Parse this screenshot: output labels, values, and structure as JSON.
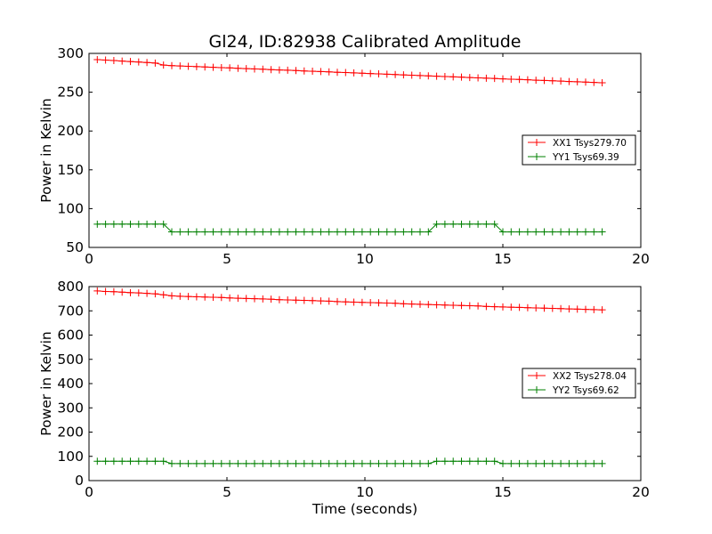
{
  "figure": {
    "title": "Gl24, ID:82938 Calibrated Amplitude"
  },
  "chart_data": [
    {
      "type": "line",
      "title": "Gl24, ID:82938 Calibrated Amplitude",
      "xlabel": "",
      "ylabel": "Power in Kelvin",
      "xlim": [
        0,
        20
      ],
      "ylim": [
        50,
        300
      ],
      "xticks": [
        0,
        5,
        10,
        15,
        20
      ],
      "yticks": [
        50,
        100,
        150,
        200,
        250,
        300
      ],
      "grid": false,
      "legend_position": "right",
      "series": [
        {
          "name": "XX1 Tsys279.70",
          "color": "#ff0000",
          "marker": "plus",
          "x": [
            0.3,
            0.6,
            0.9,
            1.2,
            1.5,
            1.8,
            2.1,
            2.4,
            2.7,
            3.0,
            3.3,
            3.6,
            3.9,
            4.2,
            4.5,
            4.8,
            5.1,
            5.4,
            5.7,
            6.0,
            6.3,
            6.6,
            6.9,
            7.2,
            7.5,
            7.8,
            8.1,
            8.4,
            8.7,
            9.0,
            9.3,
            9.6,
            9.9,
            10.2,
            10.5,
            10.8,
            11.1,
            11.4,
            11.7,
            12.0,
            12.3,
            12.6,
            12.9,
            13.2,
            13.5,
            13.8,
            14.1,
            14.4,
            14.7,
            15.0,
            15.3,
            15.6,
            15.9,
            16.2,
            16.5,
            16.8,
            17.1,
            17.4,
            17.7,
            18.0,
            18.3,
            18.6
          ],
          "y": [
            292.0,
            291.4,
            290.8,
            290.1,
            289.5,
            288.9,
            288.3,
            287.6,
            285.0,
            284.3,
            283.8,
            283.4,
            283.0,
            282.5,
            282.1,
            281.7,
            281.3,
            280.8,
            280.4,
            280.0,
            279.6,
            279.1,
            278.7,
            278.3,
            277.9,
            277.4,
            277.0,
            276.6,
            276.2,
            275.7,
            275.3,
            274.9,
            274.5,
            274.0,
            273.6,
            273.2,
            272.8,
            272.3,
            271.9,
            271.5,
            271.1,
            270.6,
            270.2,
            269.8,
            269.4,
            268.9,
            268.5,
            268.1,
            267.7,
            267.2,
            266.8,
            266.4,
            266.0,
            265.5,
            265.1,
            264.7,
            264.3,
            263.8,
            263.4,
            263.0,
            262.6,
            262.1
          ]
        },
        {
          "name": "YY1 Tsys69.39",
          "color": "#008000",
          "marker": "plus",
          "x": [
            0.3,
            0.6,
            0.9,
            1.2,
            1.5,
            1.8,
            2.1,
            2.4,
            2.7,
            3.0,
            3.3,
            3.6,
            3.9,
            4.2,
            4.5,
            4.8,
            5.1,
            5.4,
            5.7,
            6.0,
            6.3,
            6.6,
            6.9,
            7.2,
            7.5,
            7.8,
            8.1,
            8.4,
            8.7,
            9.0,
            9.3,
            9.6,
            9.9,
            10.2,
            10.5,
            10.8,
            11.1,
            11.4,
            11.7,
            12.0,
            12.3,
            12.6,
            12.9,
            13.2,
            13.5,
            13.8,
            14.1,
            14.4,
            14.7,
            15.0,
            15.3,
            15.6,
            15.9,
            16.2,
            16.5,
            16.8,
            17.1,
            17.4,
            17.7,
            18.0,
            18.3,
            18.6
          ],
          "y": [
            80,
            80,
            80,
            80,
            80,
            80,
            80,
            80,
            80,
            70,
            70,
            70,
            70,
            70,
            70,
            70,
            70,
            70,
            70,
            70,
            70,
            70,
            70,
            70,
            70,
            70,
            70,
            70,
            70,
            70,
            70,
            70,
            70,
            70,
            70,
            70,
            70,
            70,
            70,
            70,
            70,
            80,
            80,
            80,
            80,
            80,
            80,
            80,
            80,
            70,
            70,
            70,
            70,
            70,
            70,
            70,
            70,
            70,
            70,
            70,
            70,
            70
          ]
        }
      ]
    },
    {
      "type": "line",
      "title": "",
      "xlabel": "Time (seconds)",
      "ylabel": "Power in Kelvin",
      "xlim": [
        0,
        20
      ],
      "ylim": [
        0,
        800
      ],
      "xticks": [
        0,
        5,
        10,
        15,
        20
      ],
      "yticks": [
        0,
        100,
        200,
        300,
        400,
        500,
        600,
        700,
        800
      ],
      "grid": false,
      "legend_position": "right",
      "series": [
        {
          "name": "XX2 Tsys278.04",
          "color": "#ff0000",
          "marker": "plus",
          "x": [
            0.3,
            0.6,
            0.9,
            1.2,
            1.5,
            1.8,
            2.1,
            2.4,
            2.7,
            3.0,
            3.3,
            3.6,
            3.9,
            4.2,
            4.5,
            4.8,
            5.1,
            5.4,
            5.7,
            6.0,
            6.3,
            6.6,
            6.9,
            7.2,
            7.5,
            7.8,
            8.1,
            8.4,
            8.7,
            9.0,
            9.3,
            9.6,
            9.9,
            10.2,
            10.5,
            10.8,
            11.1,
            11.4,
            11.7,
            12.0,
            12.3,
            12.6,
            12.9,
            13.2,
            13.5,
            13.8,
            14.1,
            14.4,
            14.7,
            15.0,
            15.3,
            15.6,
            15.9,
            16.2,
            16.5,
            16.8,
            17.1,
            17.4,
            17.7,
            18.0,
            18.3,
            18.6
          ],
          "y": [
            782,
            780,
            779,
            777,
            775,
            774,
            772,
            770,
            766,
            762,
            760,
            759,
            758,
            757,
            756,
            755,
            753,
            752,
            751,
            750,
            749,
            748,
            746,
            745,
            744,
            743,
            742,
            741,
            740,
            738,
            737,
            736,
            735,
            734,
            733,
            732,
            731,
            729,
            728,
            727,
            726,
            725,
            724,
            723,
            722,
            721,
            720,
            718,
            717,
            716,
            715,
            714,
            713,
            712,
            711,
            710,
            709,
            708,
            707,
            706,
            705,
            704
          ]
        },
        {
          "name": "YY2 Tsys69.62",
          "color": "#008000",
          "marker": "plus",
          "x": [
            0.3,
            0.6,
            0.9,
            1.2,
            1.5,
            1.8,
            2.1,
            2.4,
            2.7,
            3.0,
            3.3,
            3.6,
            3.9,
            4.2,
            4.5,
            4.8,
            5.1,
            5.4,
            5.7,
            6.0,
            6.3,
            6.6,
            6.9,
            7.2,
            7.5,
            7.8,
            8.1,
            8.4,
            8.7,
            9.0,
            9.3,
            9.6,
            9.9,
            10.2,
            10.5,
            10.8,
            11.1,
            11.4,
            11.7,
            12.0,
            12.3,
            12.6,
            12.9,
            13.2,
            13.5,
            13.8,
            14.1,
            14.4,
            14.7,
            15.0,
            15.3,
            15.6,
            15.9,
            16.2,
            16.5,
            16.8,
            17.1,
            17.4,
            17.7,
            18.0,
            18.3,
            18.6
          ],
          "y": [
            80,
            80,
            80,
            80,
            80,
            80,
            80,
            80,
            80,
            70,
            70,
            70,
            70,
            70,
            70,
            70,
            70,
            70,
            70,
            70,
            70,
            70,
            70,
            70,
            70,
            70,
            70,
            70,
            70,
            70,
            70,
            70,
            70,
            70,
            70,
            70,
            70,
            70,
            70,
            70,
            70,
            80,
            80,
            80,
            80,
            80,
            80,
            80,
            80,
            70,
            70,
            70,
            70,
            70,
            70,
            70,
            70,
            70,
            70,
            70,
            70,
            70
          ]
        }
      ]
    }
  ]
}
